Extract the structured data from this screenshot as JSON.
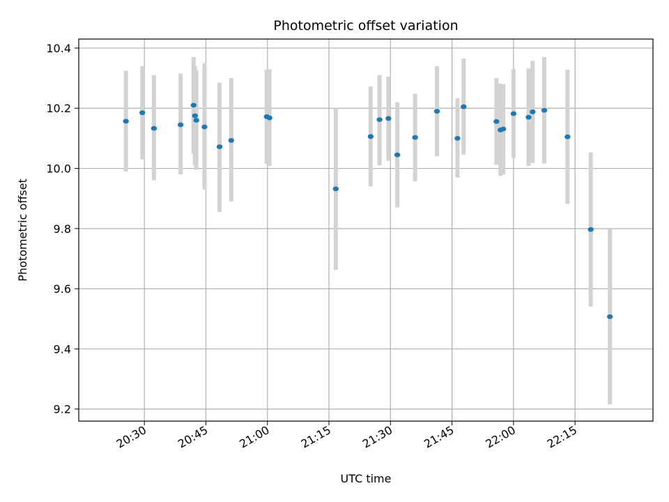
{
  "chart_data": {
    "type": "scatter",
    "title": "Photometric offset variation",
    "xlabel": "UTC time",
    "ylabel": "Photometric offset",
    "ylim": [
      9.16,
      10.43
    ],
    "xlim_minutes": [
      "20:14",
      "22:34"
    ],
    "x_ticks": [
      "20:30",
      "20:45",
      "21:00",
      "21:15",
      "21:30",
      "21:45",
      "22:00",
      "22:15"
    ],
    "y_ticks": [
      9.2,
      9.4,
      9.6,
      9.8,
      10.0,
      10.2,
      10.4
    ],
    "grid": true,
    "point_color": "#1f77b4",
    "errorbar_color": "#d3d3d3",
    "points": [
      {
        "t": "20:25:30",
        "y": 10.157,
        "lo": 9.99,
        "hi": 10.325
      },
      {
        "t": "20:29:30",
        "y": 10.185,
        "lo": 10.03,
        "hi": 10.34
      },
      {
        "t": "20:32:20",
        "y": 10.133,
        "lo": 9.96,
        "hi": 10.31
      },
      {
        "t": "20:38:50",
        "y": 10.145,
        "lo": 9.98,
        "hi": 10.315
      },
      {
        "t": "20:42:00",
        "y": 10.21,
        "lo": 10.05,
        "hi": 10.37
      },
      {
        "t": "20:42:20",
        "y": 10.175,
        "lo": 10.01,
        "hi": 10.34
      },
      {
        "t": "20:42:40",
        "y": 10.16,
        "lo": 9.995,
        "hi": 10.325
      },
      {
        "t": "20:44:40",
        "y": 10.138,
        "lo": 9.93,
        "hi": 10.35
      },
      {
        "t": "20:48:20",
        "y": 10.072,
        "lo": 9.855,
        "hi": 10.285
      },
      {
        "t": "20:51:10",
        "y": 10.093,
        "lo": 9.89,
        "hi": 10.3
      },
      {
        "t": "20:59:50",
        "y": 10.172,
        "lo": 10.015,
        "hi": 10.328
      },
      {
        "t": "21:00:30",
        "y": 10.168,
        "lo": 10.008,
        "hi": 10.33
      },
      {
        "t": "21:16:40",
        "y": 9.932,
        "lo": 9.663,
        "hi": 10.2
      },
      {
        "t": "21:25:10",
        "y": 10.106,
        "lo": 9.94,
        "hi": 10.272
      },
      {
        "t": "21:27:20",
        "y": 10.162,
        "lo": 10.01,
        "hi": 10.31
      },
      {
        "t": "21:29:30",
        "y": 10.166,
        "lo": 10.025,
        "hi": 10.305
      },
      {
        "t": "21:31:40",
        "y": 10.045,
        "lo": 9.87,
        "hi": 10.22
      },
      {
        "t": "21:36:00",
        "y": 10.103,
        "lo": 9.957,
        "hi": 10.248
      },
      {
        "t": "21:41:20",
        "y": 10.19,
        "lo": 10.04,
        "hi": 10.34
      },
      {
        "t": "21:46:20",
        "y": 10.1,
        "lo": 9.97,
        "hi": 10.233
      },
      {
        "t": "21:47:50",
        "y": 10.205,
        "lo": 10.046,
        "hi": 10.365
      },
      {
        "t": "21:55:50",
        "y": 10.156,
        "lo": 10.012,
        "hi": 10.3
      },
      {
        "t": "21:56:50",
        "y": 10.128,
        "lo": 9.975,
        "hi": 10.282
      },
      {
        "t": "21:57:30",
        "y": 10.131,
        "lo": 9.98,
        "hi": 10.28
      },
      {
        "t": "22:00:00",
        "y": 10.182,
        "lo": 10.035,
        "hi": 10.33
      },
      {
        "t": "22:03:40",
        "y": 10.17,
        "lo": 10.008,
        "hi": 10.332
      },
      {
        "t": "22:04:40",
        "y": 10.188,
        "lo": 10.018,
        "hi": 10.358
      },
      {
        "t": "22:07:30",
        "y": 10.193,
        "lo": 10.016,
        "hi": 10.37
      },
      {
        "t": "22:13:10",
        "y": 10.105,
        "lo": 9.882,
        "hi": 10.328
      },
      {
        "t": "22:18:50",
        "y": 9.797,
        "lo": 9.541,
        "hi": 10.053
      },
      {
        "t": "22:23:30",
        "y": 9.507,
        "lo": 9.215,
        "hi": 9.8
      }
    ]
  }
}
